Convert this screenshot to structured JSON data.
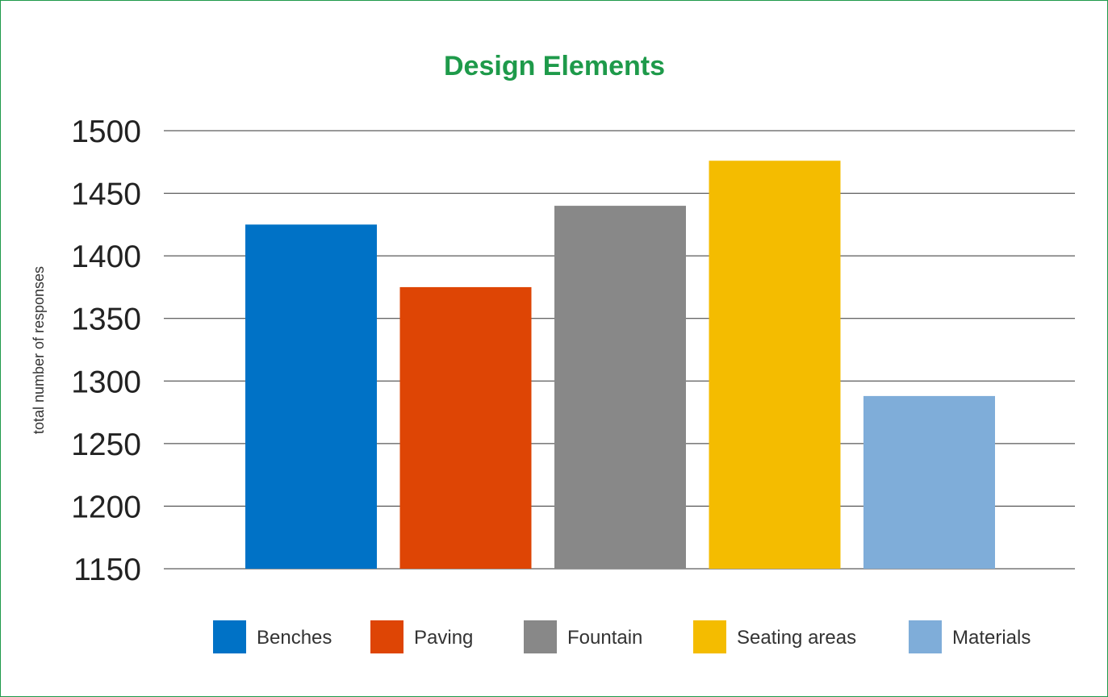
{
  "chart_data": {
    "type": "bar",
    "title": "Design Elements",
    "ylabel": "total number of responses",
    "xlabel": "",
    "ylim": [
      1150,
      1500
    ],
    "yticks": [
      1150,
      1200,
      1250,
      1300,
      1350,
      1400,
      1450,
      1500
    ],
    "grid": true,
    "legend_position": "bottom",
    "categories": [
      "Benches",
      "Paving",
      "Fountain",
      "Seating areas",
      "Materials"
    ],
    "values": [
      1425,
      1375,
      1440,
      1476,
      1288
    ],
    "colors": [
      "#0072c6",
      "#de4505",
      "#888888",
      "#f4bc00",
      "#7fadd9"
    ],
    "title_color": "#1e9a4a",
    "frame_color": "#1e9a4a"
  }
}
